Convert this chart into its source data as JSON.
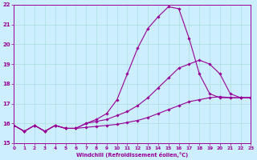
{
  "xlabel": "Windchill (Refroidissement éolien,°C)",
  "xlim": [
    0,
    23
  ],
  "ylim": [
    15,
    22
  ],
  "yticks": [
    15,
    16,
    17,
    18,
    19,
    20,
    21,
    22
  ],
  "xticks": [
    0,
    1,
    2,
    3,
    4,
    5,
    6,
    7,
    8,
    9,
    10,
    11,
    12,
    13,
    14,
    15,
    16,
    17,
    18,
    19,
    20,
    21,
    22,
    23
  ],
  "bg_color": "#cceeff",
  "line_color": "#990099",
  "grid_color": "#aadddd",
  "series1_x": [
    0,
    1,
    2,
    3,
    4,
    5,
    6,
    7,
    8,
    9,
    10,
    11,
    12,
    13,
    14,
    15,
    16,
    17,
    18,
    19,
    20,
    21,
    22,
    23
  ],
  "series1_y": [
    15.9,
    15.6,
    15.9,
    15.6,
    15.9,
    15.75,
    15.75,
    15.8,
    15.85,
    15.9,
    15.95,
    16.05,
    16.15,
    16.3,
    16.5,
    16.7,
    16.9,
    17.1,
    17.2,
    17.3,
    17.35,
    17.3,
    17.3,
    17.3
  ],
  "series2_x": [
    0,
    1,
    2,
    3,
    4,
    5,
    6,
    7,
    8,
    9,
    10,
    11,
    12,
    13,
    14,
    15,
    16,
    17,
    18,
    19,
    20,
    21,
    22,
    23
  ],
  "series2_y": [
    15.9,
    15.6,
    15.9,
    15.6,
    15.9,
    15.75,
    15.75,
    16.0,
    16.1,
    16.2,
    16.4,
    16.6,
    16.9,
    17.3,
    17.8,
    18.3,
    18.8,
    19.0,
    19.2,
    19.0,
    18.5,
    17.5,
    17.3,
    17.3
  ],
  "series3_x": [
    0,
    1,
    2,
    3,
    4,
    5,
    6,
    7,
    8,
    9,
    10,
    11,
    12,
    13,
    14,
    15,
    16,
    17,
    18,
    19,
    20,
    21,
    22,
    23
  ],
  "series3_y": [
    15.9,
    15.6,
    15.9,
    15.6,
    15.9,
    15.75,
    15.75,
    16.0,
    16.2,
    16.5,
    17.2,
    18.5,
    19.8,
    20.8,
    21.4,
    21.9,
    21.8,
    20.3,
    18.5,
    17.5,
    17.3,
    17.3,
    17.3,
    17.3
  ]
}
